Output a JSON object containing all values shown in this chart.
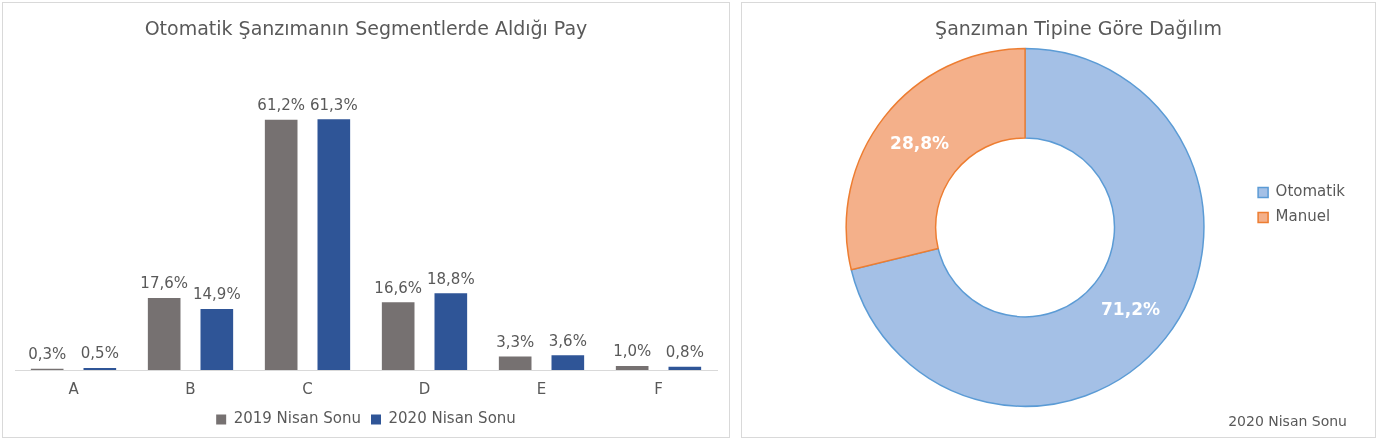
{
  "chart_data": [
    {
      "type": "bar",
      "title": "Otomatik Şanzımanın Segmentlerde Aldığı Pay",
      "categories": [
        "A",
        "B",
        "C",
        "D",
        "E",
        "F"
      ],
      "legend": "bottom",
      "series": [
        {
          "name": "2019 Nisan Sonu",
          "color": "#767171",
          "values": [
            0.3,
            17.6,
            61.2,
            16.6,
            3.3,
            1.0
          ],
          "value_labels": [
            "0,3%",
            "17,6%",
            "61,2%",
            "16,6%",
            "3,3%",
            "1,0%"
          ]
        },
        {
          "name": "2020 Nisan Sonu",
          "color": "#2f5597",
          "values": [
            0.5,
            14.9,
            61.3,
            18.8,
            3.6,
            0.8
          ],
          "value_labels": [
            "0,5%",
            "14,9%",
            "61,3%",
            "18,8%",
            "3,6%",
            "0,8%"
          ]
        }
      ]
    },
    {
      "type": "donut",
      "title": "Şanzıman Tipine Göre Dağılım",
      "categories": [
        "Otomatik",
        "Manuel"
      ],
      "values": [
        71.2,
        28.8
      ],
      "colors": [
        "#a4c0e6",
        "#f4b08a"
      ],
      "value_labels": [
        "71,2%",
        "28,8%"
      ],
      "legend": "right",
      "annotations": [
        "2020 Nisan Sonu"
      ]
    }
  ]
}
